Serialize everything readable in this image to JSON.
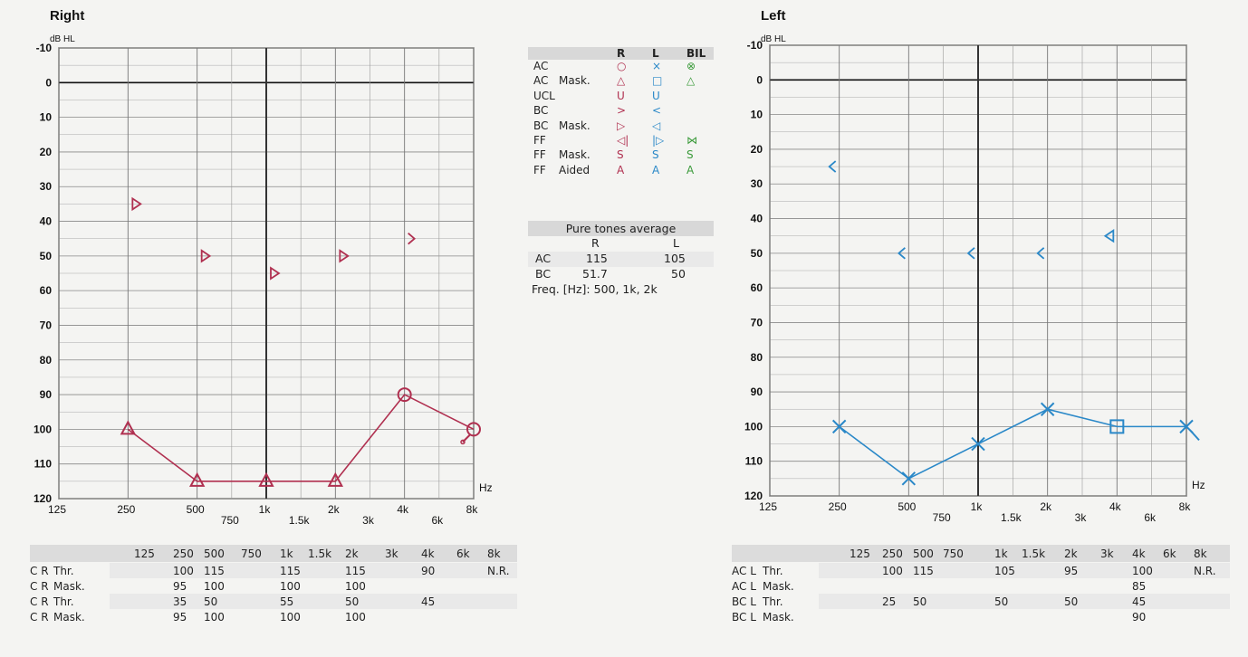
{
  "chart_data": [
    {
      "type": "line",
      "title": "Right",
      "ylabel": "dB HL",
      "xlabel": "Hz",
      "ylim": [
        -10,
        120
      ],
      "y_ticks": [
        "-10",
        "0",
        "10",
        "20",
        "30",
        "40",
        "50",
        "60",
        "70",
        "80",
        "90",
        "100",
        "110",
        "120"
      ],
      "x_ticks": [
        "125",
        "250",
        "500",
        "750",
        "1k",
        "1.5k",
        "2k",
        "3k",
        "4k",
        "6k",
        "8k"
      ],
      "series": [
        {
          "name": "AC",
          "points": [
            [
              "250",
              100
            ],
            [
              "500",
              115
            ],
            [
              "1k",
              115
            ],
            [
              "2k",
              115
            ],
            [
              "4k",
              90
            ],
            [
              "8k",
              100
            ]
          ],
          "connected": true,
          "color": "#b03050"
        },
        {
          "name": "AC Mask.",
          "points": [
            [
              "250",
              100
            ],
            [
              "500",
              115
            ],
            [
              "1k",
              115
            ],
            [
              "2k",
              115
            ]
          ],
          "color": "#b03050"
        },
        {
          "name": "BC Mask.",
          "points": [
            [
              "250",
              35
            ],
            [
              "500",
              50
            ],
            [
              "1k",
              55
            ],
            [
              "2k",
              50
            ]
          ],
          "color": "#b03050"
        },
        {
          "name": "BC",
          "points": [
            [
              "4k",
              45
            ]
          ],
          "color": "#b03050"
        }
      ],
      "no_response": [
        "8k"
      ]
    },
    {
      "type": "line",
      "title": "Left",
      "ylabel": "dB HL",
      "xlabel": "Hz",
      "ylim": [
        -10,
        120
      ],
      "y_ticks": [
        "-10",
        "0",
        "10",
        "20",
        "30",
        "40",
        "50",
        "60",
        "70",
        "80",
        "90",
        "100",
        "110",
        "120"
      ],
      "x_ticks": [
        "125",
        "250",
        "500",
        "750",
        "1k",
        "1.5k",
        "2k",
        "3k",
        "4k",
        "6k",
        "8k"
      ],
      "series": [
        {
          "name": "AC",
          "points": [
            [
              "250",
              100
            ],
            [
              "500",
              115
            ],
            [
              "1k",
              105
            ],
            [
              "2k",
              95
            ],
            [
              "4k",
              100
            ],
            [
              "8k",
              100
            ]
          ],
          "connected": true,
          "color": "#2a88c8"
        },
        {
          "name": "AC Mask.",
          "points": [
            [
              "4k",
              100
            ]
          ],
          "color": "#2a88c8"
        },
        {
          "name": "BC",
          "points": [
            [
              "250",
              25
            ],
            [
              "500",
              50
            ],
            [
              "1k",
              50
            ],
            [
              "2k",
              50
            ]
          ],
          "color": "#2a88c8"
        },
        {
          "name": "BC Mask.",
          "points": [
            [
              "4k",
              45
            ]
          ],
          "color": "#2a88c8"
        }
      ],
      "no_response": [
        "8k"
      ]
    }
  ],
  "legend": {
    "cols": [
      "R",
      "L",
      "BIL"
    ],
    "rows": [
      {
        "label": "AC",
        "label2": "",
        "r": "○",
        "l": "×",
        "b": "⊗"
      },
      {
        "label": "AC",
        "label2": "Mask.",
        "r": "△",
        "l": "□",
        "b": "△"
      },
      {
        "label": "UCL",
        "label2": "",
        "r": "U",
        "l": "U",
        "b": ""
      },
      {
        "label": "BC",
        "label2": "",
        "r": ">",
        "l": "<",
        "b": ""
      },
      {
        "label": "BC",
        "label2": "Mask.",
        "r": "▷",
        "l": "◁",
        "b": ""
      },
      {
        "label": "FF",
        "label2": "",
        "r": "◁|",
        "l": "|▷",
        "b": "⋈"
      },
      {
        "label": "FF",
        "label2": "Mask.",
        "r": "S",
        "l": "S",
        "b": "S"
      },
      {
        "label": "FF",
        "label2": "Aided",
        "r": "A",
        "l": "A",
        "b": "A"
      }
    ]
  },
  "pta": {
    "title": "Pure tones average",
    "col_r": "R",
    "col_l": "L",
    "rows": [
      {
        "label": "AC",
        "r": "115",
        "l": "105"
      },
      {
        "label": "BC",
        "r": "51.7",
        "l": "50"
      }
    ],
    "freq": "Freq. [Hz]: 500, 1k, 2k"
  },
  "tables": {
    "headers": [
      "125",
      "250",
      "500",
      "750",
      "1k",
      "1.5k",
      "2k",
      "3k",
      "4k",
      "6k",
      "8k"
    ],
    "right": [
      {
        "code": "C R",
        "label": "Thr.",
        "v": [
          "",
          "100",
          "115",
          "",
          "115",
          "",
          "115",
          "",
          "90",
          "",
          "N.R."
        ]
      },
      {
        "code": "C R",
        "label": "Mask.",
        "v": [
          "",
          "95",
          "100",
          "",
          "100",
          "",
          "100",
          "",
          "",
          "",
          ""
        ]
      },
      {
        "code": "C R",
        "label": "Thr.",
        "v": [
          "",
          "35",
          "50",
          "",
          "55",
          "",
          "50",
          "",
          "45",
          "",
          ""
        ]
      },
      {
        "code": "C R",
        "label": "Mask.",
        "v": [
          "",
          "95",
          "100",
          "",
          "100",
          "",
          "100",
          "",
          "",
          "",
          ""
        ]
      }
    ],
    "left": [
      {
        "code": "AC L",
        "label": "Thr.",
        "v": [
          "",
          "100",
          "115",
          "",
          "105",
          "",
          "95",
          "",
          "100",
          "",
          "N.R."
        ]
      },
      {
        "code": "AC L",
        "label": "Mask.",
        "v": [
          "",
          "",
          "",
          "",
          "",
          "",
          "",
          "",
          "85",
          "",
          ""
        ]
      },
      {
        "code": "BC L",
        "label": "Thr.",
        "v": [
          "",
          "25",
          "50",
          "",
          "50",
          "",
          "50",
          "",
          "45",
          "",
          ""
        ]
      },
      {
        "code": "BC L",
        "label": "Mask.",
        "v": [
          "",
          "",
          "",
          "",
          "",
          "",
          "",
          "",
          "90",
          "",
          ""
        ]
      }
    ]
  }
}
